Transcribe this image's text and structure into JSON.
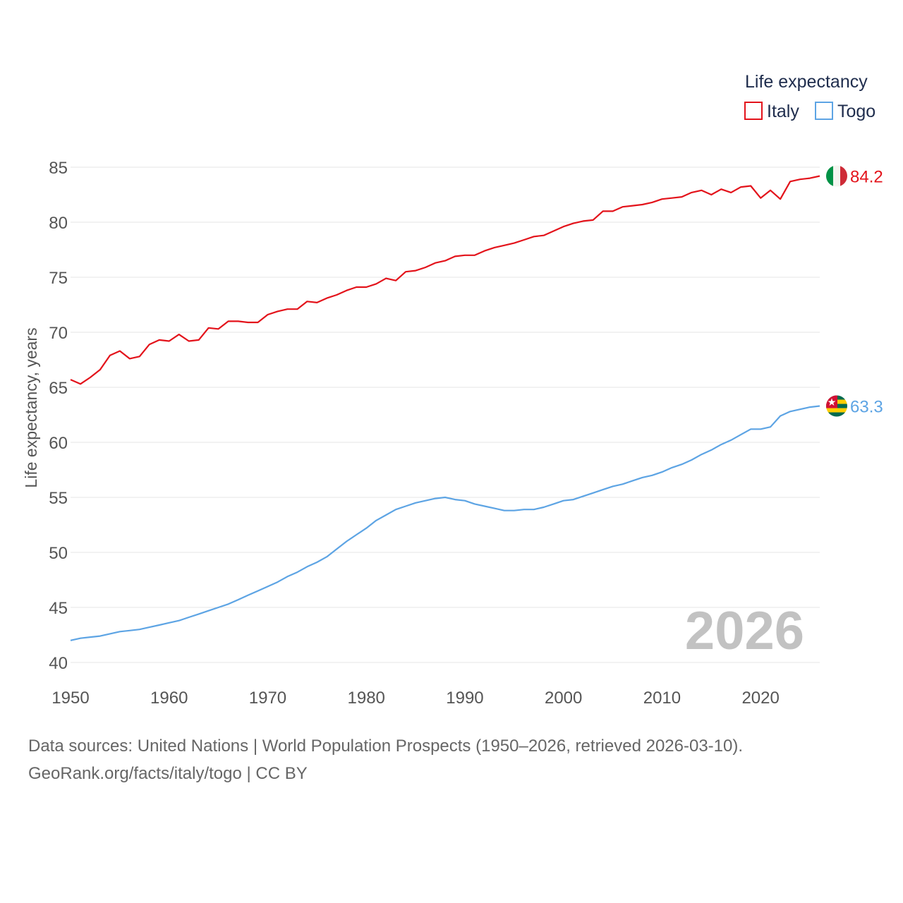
{
  "chart_data": {
    "type": "line",
    "title": "Life expectancy",
    "xlabel": "",
    "ylabel": "Life expectancy, years",
    "xlim": [
      1950,
      2026
    ],
    "ylim": [
      40,
      85
    ],
    "x_ticks": [
      "1950",
      "1960",
      "1970",
      "1980",
      "1990",
      "2000",
      "2010",
      "2020"
    ],
    "y_ticks": [
      "40",
      "45",
      "50",
      "55",
      "60",
      "65",
      "70",
      "75",
      "80",
      "85"
    ],
    "year_label": "2026",
    "legend_title": "Life expectancy",
    "series": [
      {
        "name": "Italy",
        "color": "#e3131b",
        "end_label": "84.2",
        "flag": "italy-flag-icon",
        "x": [
          1950,
          1951,
          1952,
          1953,
          1954,
          1955,
          1956,
          1957,
          1958,
          1959,
          1960,
          1961,
          1962,
          1963,
          1964,
          1965,
          1966,
          1967,
          1968,
          1969,
          1970,
          1971,
          1972,
          1973,
          1974,
          1975,
          1976,
          1977,
          1978,
          1979,
          1980,
          1981,
          1982,
          1983,
          1984,
          1985,
          1986,
          1987,
          1988,
          1989,
          1990,
          1991,
          1992,
          1993,
          1994,
          1995,
          1996,
          1997,
          1998,
          1999,
          2000,
          2001,
          2002,
          2003,
          2004,
          2005,
          2006,
          2007,
          2008,
          2009,
          2010,
          2011,
          2012,
          2013,
          2014,
          2015,
          2016,
          2017,
          2018,
          2019,
          2020,
          2021,
          2022,
          2023,
          2024,
          2025,
          2026
        ],
        "values": [
          65.7,
          65.3,
          65.9,
          66.6,
          67.9,
          68.3,
          67.6,
          67.8,
          68.9,
          69.3,
          69.2,
          69.8,
          69.2,
          69.3,
          70.4,
          70.3,
          71.0,
          71.0,
          70.9,
          70.9,
          71.6,
          71.9,
          72.1,
          72.1,
          72.8,
          72.7,
          73.1,
          73.4,
          73.8,
          74.1,
          74.1,
          74.4,
          74.9,
          74.7,
          75.5,
          75.6,
          75.9,
          76.3,
          76.5,
          76.9,
          77.0,
          77.0,
          77.4,
          77.7,
          77.9,
          78.1,
          78.4,
          78.7,
          78.8,
          79.2,
          79.6,
          79.9,
          80.1,
          80.2,
          81.0,
          81.0,
          81.4,
          81.5,
          81.6,
          81.8,
          82.1,
          82.2,
          82.3,
          82.7,
          82.9,
          82.5,
          83.0,
          82.7,
          83.2,
          83.3,
          82.2,
          82.9,
          82.1,
          83.7,
          83.9,
          84.0,
          84.2
        ]
      },
      {
        "name": "Togo",
        "color": "#5da4e4",
        "end_label": "63.3",
        "flag": "togo-flag-icon",
        "x": [
          1950,
          1951,
          1952,
          1953,
          1954,
          1955,
          1956,
          1957,
          1958,
          1959,
          1960,
          1961,
          1962,
          1963,
          1964,
          1965,
          1966,
          1967,
          1968,
          1969,
          1970,
          1971,
          1972,
          1973,
          1974,
          1975,
          1976,
          1977,
          1978,
          1979,
          1980,
          1981,
          1982,
          1983,
          1984,
          1985,
          1986,
          1987,
          1988,
          1989,
          1990,
          1991,
          1992,
          1993,
          1994,
          1995,
          1996,
          1997,
          1998,
          1999,
          2000,
          2001,
          2002,
          2003,
          2004,
          2005,
          2006,
          2007,
          2008,
          2009,
          2010,
          2011,
          2012,
          2013,
          2014,
          2015,
          2016,
          2017,
          2018,
          2019,
          2020,
          2021,
          2022,
          2023,
          2024,
          2025,
          2026
        ],
        "values": [
          42.0,
          42.2,
          42.3,
          42.4,
          42.6,
          42.8,
          42.9,
          43.0,
          43.2,
          43.4,
          43.6,
          43.8,
          44.1,
          44.4,
          44.7,
          45.0,
          45.3,
          45.7,
          46.1,
          46.5,
          46.9,
          47.3,
          47.8,
          48.2,
          48.7,
          49.1,
          49.6,
          50.3,
          51.0,
          51.6,
          52.2,
          52.9,
          53.4,
          53.9,
          54.2,
          54.5,
          54.7,
          54.9,
          55.0,
          54.8,
          54.7,
          54.4,
          54.2,
          54.0,
          53.8,
          53.8,
          53.9,
          53.9,
          54.1,
          54.4,
          54.7,
          54.8,
          55.1,
          55.4,
          55.7,
          56.0,
          56.2,
          56.5,
          56.8,
          57.0,
          57.3,
          57.7,
          58.0,
          58.4,
          58.9,
          59.3,
          59.8,
          60.2,
          60.7,
          61.2,
          61.2,
          61.4,
          62.4,
          62.8,
          63.0,
          63.2,
          63.3
        ]
      }
    ]
  },
  "footer": {
    "line1": "Data sources: United Nations | World Population Prospects (1950–2026, retrieved 2026-03-10).",
    "line2": "GeoRank.org/facts/italy/togo | CC BY"
  }
}
